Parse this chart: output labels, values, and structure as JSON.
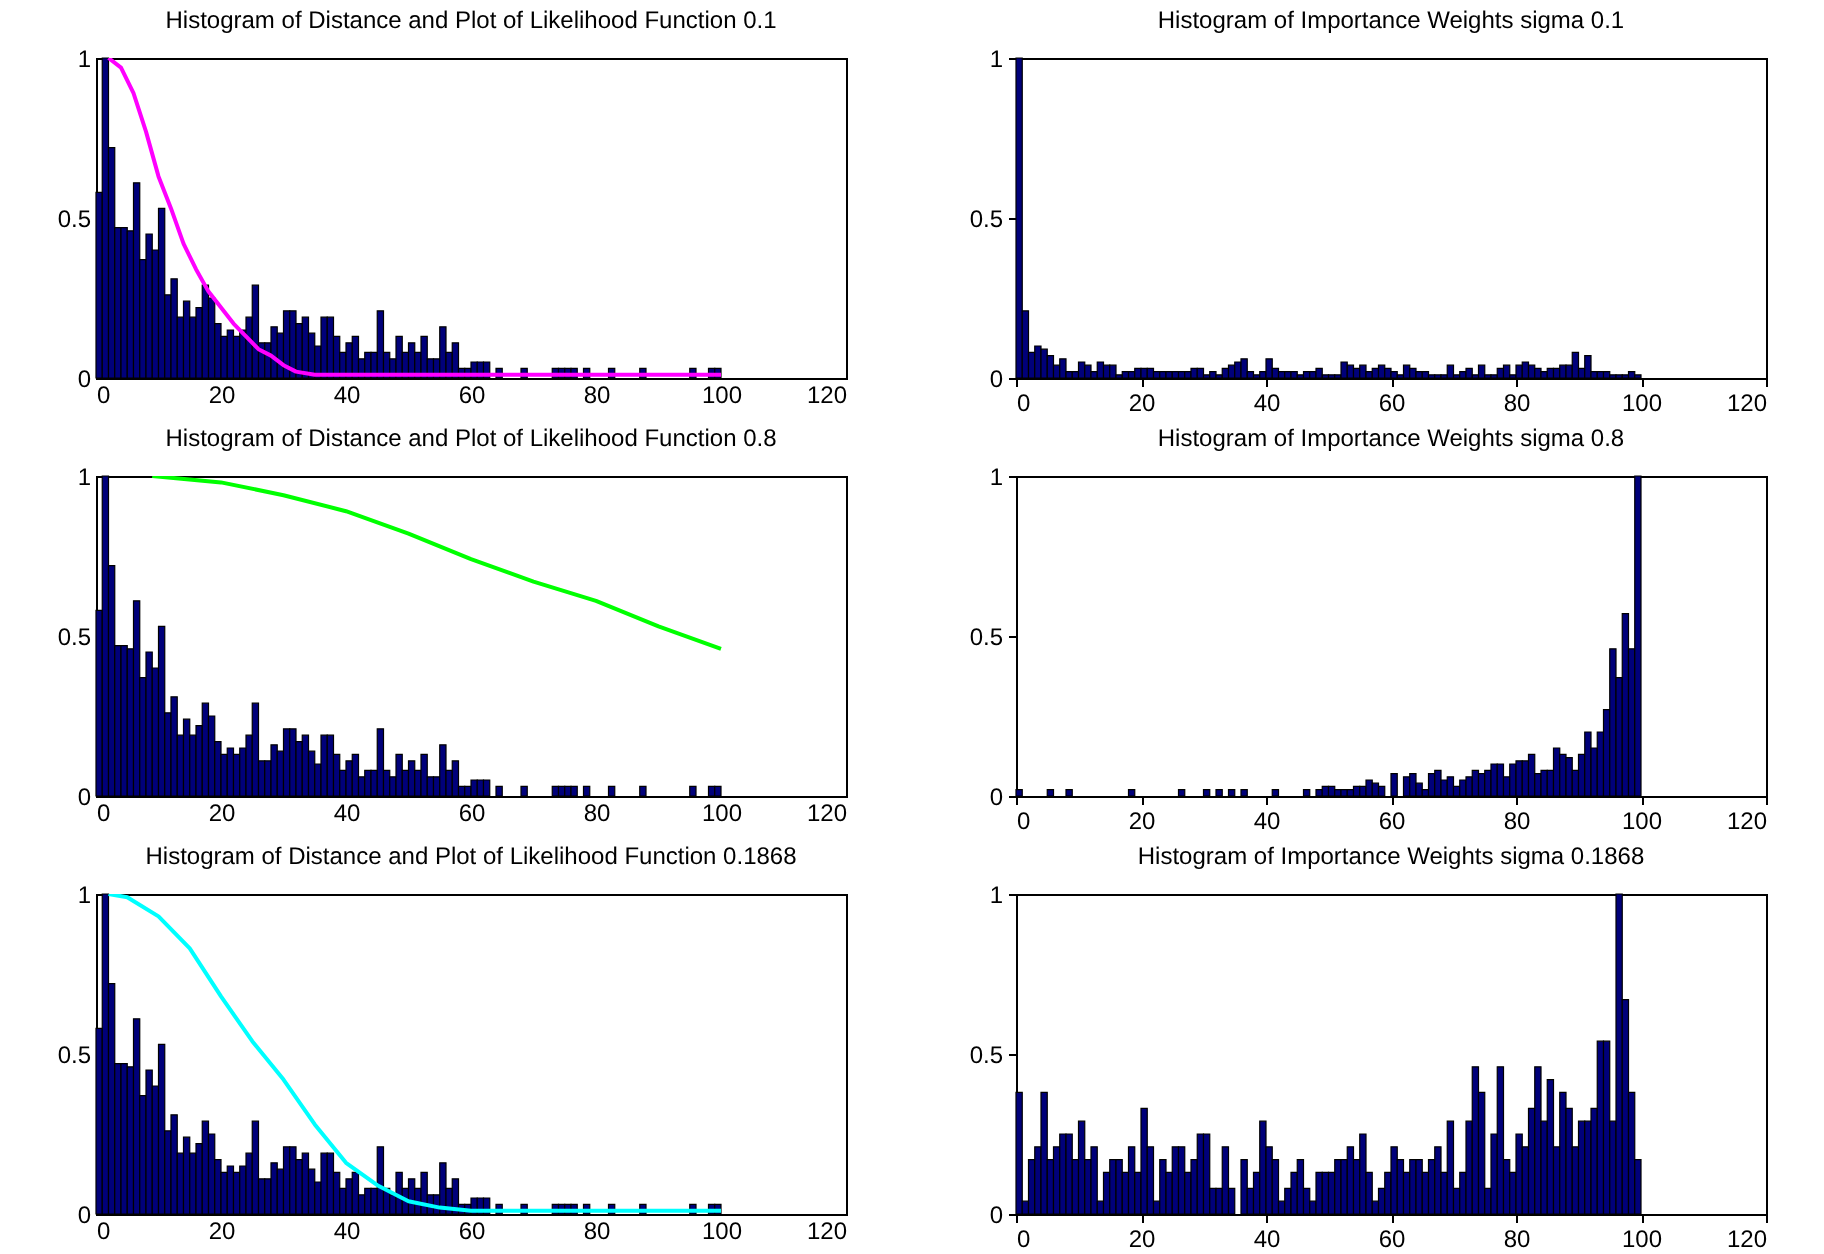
{
  "chart_data": [
    {
      "type": "histogram",
      "title": "Histogram of Distance and Plot of Likelihood Function 0.1",
      "bins": [
        0,
        1,
        2,
        3,
        4,
        5,
        6,
        7,
        8,
        9,
        10,
        11,
        12,
        13,
        14,
        15,
        16,
        17,
        18,
        19,
        20,
        21,
        22,
        23,
        24,
        25,
        26,
        27,
        28,
        29,
        30,
        31,
        32,
        33,
        34,
        35,
        36,
        37,
        38,
        39,
        40,
        41,
        42,
        43,
        44,
        45,
        46,
        47,
        48,
        49,
        50,
        51,
        52,
        53,
        54,
        55,
        56,
        57,
        58,
        59,
        60,
        61,
        62,
        63,
        64,
        65,
        66,
        67,
        68,
        69,
        70,
        71,
        72,
        73,
        74,
        75,
        76,
        77,
        78,
        79,
        80,
        81,
        82,
        83,
        84,
        85,
        86,
        87,
        88,
        89,
        90,
        91,
        92,
        93,
        94,
        95,
        96,
        97,
        98,
        99,
        100
      ],
      "xlim": [
        0,
        120
      ],
      "xticks": [
        0,
        20,
        40,
        60,
        80,
        100,
        120
      ],
      "ylim": [
        0,
        1
      ],
      "yticks": [
        0,
        0.5,
        1
      ],
      "series": [
        {
          "type": "histogram",
          "color": "#00007a",
          "values": [
            0.58,
            1.0,
            0.72,
            0.47,
            0.47,
            0.46,
            0.61,
            0.37,
            0.45,
            0.4,
            0.53,
            0.26,
            0.31,
            0.19,
            0.24,
            0.19,
            0.22,
            0.29,
            0.25,
            0.17,
            0.13,
            0.15,
            0.13,
            0.15,
            0.19,
            0.29,
            0.11,
            0.11,
            0.16,
            0.14,
            0.21,
            0.21,
            0.17,
            0.19,
            0.14,
            0.1,
            0.19,
            0.19,
            0.13,
            0.08,
            0.11,
            0.13,
            0.06,
            0.08,
            0.08,
            0.21,
            0.08,
            0.06,
            0.13,
            0.08,
            0.11,
            0.08,
            0.13,
            0.06,
            0.06,
            0.16,
            0.08,
            0.11,
            0.03,
            0.03,
            0.05,
            0.05,
            0.05,
            0,
            0.03,
            0,
            0,
            0,
            0.03,
            0,
            0,
            0,
            0,
            0.03,
            0.03,
            0.03,
            0.03,
            0,
            0.03,
            0,
            0,
            0,
            0.03,
            0,
            0,
            0,
            0,
            0.03,
            0,
            0,
            0,
            0,
            0,
            0,
            0,
            0.03,
            0,
            0,
            0.03,
            0.03
          ]
        },
        {
          "type": "line",
          "color": "#ff00ff",
          "x": [
            2,
            4,
            6,
            8,
            10,
            12,
            14,
            16,
            18,
            20,
            22,
            24,
            26,
            28,
            30,
            32,
            35,
            100
          ],
          "values": [
            1,
            0.97,
            0.89,
            0.77,
            0.63,
            0.53,
            0.42,
            0.34,
            0.27,
            0.22,
            0.17,
            0.13,
            0.09,
            0.07,
            0.04,
            0.02,
            0.01,
            0.01
          ]
        }
      ]
    },
    {
      "type": "histogram",
      "title": "Histogram of Importance Weights sigma 0.1",
      "bins": [
        0,
        1,
        2,
        3,
        4,
        5,
        6,
        7,
        8,
        9,
        10,
        11,
        12,
        13,
        14,
        15,
        16,
        17,
        18,
        19,
        20,
        21,
        22,
        23,
        24,
        25,
        26,
        27,
        28,
        29,
        30,
        31,
        32,
        33,
        34,
        35,
        36,
        37,
        38,
        39,
        40,
        41,
        42,
        43,
        44,
        45,
        46,
        47,
        48,
        49,
        50,
        51,
        52,
        53,
        54,
        55,
        56,
        57,
        58,
        59,
        60,
        61,
        62,
        63,
        64,
        65,
        66,
        67,
        68,
        69,
        70,
        71,
        72,
        73,
        74,
        75,
        76,
        77,
        78,
        79,
        80,
        81,
        82,
        83,
        84,
        85,
        86,
        87,
        88,
        89,
        90,
        91,
        92,
        93,
        94,
        95,
        96,
        97,
        98,
        99,
        100
      ],
      "xlim": [
        0,
        120
      ],
      "xticks": [
        0,
        20,
        40,
        60,
        80,
        100,
        120
      ],
      "ylim": [
        0,
        1
      ],
      "yticks": [
        0,
        0.5,
        1
      ],
      "series": [
        {
          "type": "histogram",
          "color": "#00007a",
          "values": [
            1.0,
            0.21,
            0.08,
            0.1,
            0.09,
            0.07,
            0.04,
            0.06,
            0.02,
            0.02,
            0.05,
            0.04,
            0.02,
            0.05,
            0.04,
            0.04,
            0.01,
            0.02,
            0.02,
            0.03,
            0.03,
            0.03,
            0.02,
            0.02,
            0.02,
            0.02,
            0.02,
            0.02,
            0.03,
            0.03,
            0.01,
            0.02,
            0.01,
            0.03,
            0.04,
            0.05,
            0.06,
            0.02,
            0.01,
            0.02,
            0.06,
            0.03,
            0.02,
            0.02,
            0.02,
            0.01,
            0.02,
            0.02,
            0.03,
            0.01,
            0.01,
            0.01,
            0.05,
            0.04,
            0.03,
            0.04,
            0.02,
            0.03,
            0.04,
            0.03,
            0.02,
            0.01,
            0.04,
            0.03,
            0.02,
            0.02,
            0.01,
            0.01,
            0.01,
            0.04,
            0.01,
            0.02,
            0.03,
            0.01,
            0.04,
            0.01,
            0.01,
            0.03,
            0.04,
            0.01,
            0.04,
            0.05,
            0.04,
            0.03,
            0.02,
            0.03,
            0.03,
            0.04,
            0.04,
            0.08,
            0.03,
            0.07,
            0.02,
            0.02,
            0.02,
            0.01,
            0.01,
            0.01,
            0.02,
            0.01
          ]
        }
      ]
    },
    {
      "type": "histogram",
      "title": "Histogram of Distance and Plot of Likelihood Function 0.8",
      "bins": [
        0,
        1,
        2,
        3,
        4,
        5,
        6,
        7,
        8,
        9,
        10,
        11,
        12,
        13,
        14,
        15,
        16,
        17,
        18,
        19,
        20,
        21,
        22,
        23,
        24,
        25,
        26,
        27,
        28,
        29,
        30,
        31,
        32,
        33,
        34,
        35,
        36,
        37,
        38,
        39,
        40,
        41,
        42,
        43,
        44,
        45,
        46,
        47,
        48,
        49,
        50,
        51,
        52,
        53,
        54,
        55,
        56,
        57,
        58,
        59,
        60,
        61,
        62,
        63,
        64,
        65,
        66,
        67,
        68,
        69,
        70,
        71,
        72,
        73,
        74,
        75,
        76,
        77,
        78,
        79,
        80,
        81,
        82,
        83,
        84,
        85,
        86,
        87,
        88,
        89,
        90,
        91,
        92,
        93,
        94,
        95,
        96,
        97,
        98,
        99,
        100
      ],
      "xlim": [
        0,
        120
      ],
      "xticks": [
        0,
        20,
        40,
        60,
        80,
        100,
        120
      ],
      "ylim": [
        0,
        1
      ],
      "yticks": [
        0,
        0.5,
        1
      ],
      "series": [
        {
          "type": "histogram",
          "color": "#00007a",
          "values": [
            0.58,
            1.0,
            0.72,
            0.47,
            0.47,
            0.46,
            0.61,
            0.37,
            0.45,
            0.4,
            0.53,
            0.26,
            0.31,
            0.19,
            0.24,
            0.19,
            0.22,
            0.29,
            0.25,
            0.17,
            0.13,
            0.15,
            0.13,
            0.15,
            0.19,
            0.29,
            0.11,
            0.11,
            0.16,
            0.14,
            0.21,
            0.21,
            0.17,
            0.19,
            0.14,
            0.1,
            0.19,
            0.19,
            0.13,
            0.08,
            0.11,
            0.13,
            0.06,
            0.08,
            0.08,
            0.21,
            0.08,
            0.06,
            0.13,
            0.08,
            0.11,
            0.08,
            0.13,
            0.06,
            0.06,
            0.16,
            0.08,
            0.11,
            0.03,
            0.03,
            0.05,
            0.05,
            0.05,
            0,
            0.03,
            0,
            0,
            0,
            0.03,
            0,
            0,
            0,
            0,
            0.03,
            0.03,
            0.03,
            0.03,
            0,
            0.03,
            0,
            0,
            0,
            0.03,
            0,
            0,
            0,
            0,
            0.03,
            0,
            0,
            0,
            0,
            0,
            0,
            0,
            0.03,
            0,
            0,
            0.03,
            0.03
          ]
        },
        {
          "type": "line",
          "color": "#00ff00",
          "x": [
            9,
            20,
            30,
            40,
            50,
            60,
            70,
            80,
            90,
            100
          ],
          "values": [
            1,
            0.98,
            0.94,
            0.89,
            0.82,
            0.74,
            0.67,
            0.61,
            0.53,
            0.46
          ]
        }
      ]
    },
    {
      "type": "histogram",
      "title": "Histogram of Importance Weights sigma 0.8",
      "bins": [
        0,
        1,
        2,
        3,
        4,
        5,
        6,
        7,
        8,
        9,
        10,
        11,
        12,
        13,
        14,
        15,
        16,
        17,
        18,
        19,
        20,
        21,
        22,
        23,
        24,
        25,
        26,
        27,
        28,
        29,
        30,
        31,
        32,
        33,
        34,
        35,
        36,
        37,
        38,
        39,
        40,
        41,
        42,
        43,
        44,
        45,
        46,
        47,
        48,
        49,
        50,
        51,
        52,
        53,
        54,
        55,
        56,
        57,
        58,
        59,
        60,
        61,
        62,
        63,
        64,
        65,
        66,
        67,
        68,
        69,
        70,
        71,
        72,
        73,
        74,
        75,
        76,
        77,
        78,
        79,
        80,
        81,
        82,
        83,
        84,
        85,
        86,
        87,
        88,
        89,
        90,
        91,
        92,
        93,
        94,
        95,
        96,
        97,
        98,
        99,
        100
      ],
      "xlim": [
        0,
        120
      ],
      "xticks": [
        0,
        20,
        40,
        60,
        80,
        100,
        120
      ],
      "ylim": [
        0,
        1
      ],
      "yticks": [
        0,
        0.5,
        1
      ],
      "series": [
        {
          "type": "histogram",
          "color": "#00007a",
          "values": [
            0.02,
            0,
            0,
            0,
            0,
            0.02,
            0,
            0,
            0.02,
            0,
            0,
            0,
            0,
            0,
            0,
            0,
            0,
            0,
            0.02,
            0,
            0,
            0,
            0,
            0,
            0,
            0,
            0.02,
            0,
            0,
            0,
            0.02,
            0,
            0.02,
            0,
            0.02,
            0,
            0.02,
            0,
            0,
            0,
            0,
            0.02,
            0,
            0,
            0,
            0,
            0.02,
            0,
            0.02,
            0.03,
            0.03,
            0.02,
            0.02,
            0.02,
            0.03,
            0.03,
            0.05,
            0.04,
            0.03,
            0,
            0.07,
            0,
            0.06,
            0.07,
            0.04,
            0.02,
            0.07,
            0.08,
            0.05,
            0.06,
            0.03,
            0.05,
            0.06,
            0.08,
            0.07,
            0.08,
            0.1,
            0.1,
            0.06,
            0.1,
            0.11,
            0.11,
            0.13,
            0.07,
            0.08,
            0.08,
            0.15,
            0.13,
            0.12,
            0.08,
            0.13,
            0.2,
            0.15,
            0.2,
            0.27,
            0.46,
            0.37,
            0.57,
            0.46,
            1.0
          ]
        }
      ]
    },
    {
      "type": "histogram",
      "title": "Histogram of Distance and Plot of Likelihood Function 0.1868",
      "bins": [
        0,
        1,
        2,
        3,
        4,
        5,
        6,
        7,
        8,
        9,
        10,
        11,
        12,
        13,
        14,
        15,
        16,
        17,
        18,
        19,
        20,
        21,
        22,
        23,
        24,
        25,
        26,
        27,
        28,
        29,
        30,
        31,
        32,
        33,
        34,
        35,
        36,
        37,
        38,
        39,
        40,
        41,
        42,
        43,
        44,
        45,
        46,
        47,
        48,
        49,
        50,
        51,
        52,
        53,
        54,
        55,
        56,
        57,
        58,
        59,
        60,
        61,
        62,
        63,
        64,
        65,
        66,
        67,
        68,
        69,
        70,
        71,
        72,
        73,
        74,
        75,
        76,
        77,
        78,
        79,
        80,
        81,
        82,
        83,
        84,
        85,
        86,
        87,
        88,
        89,
        90,
        91,
        92,
        93,
        94,
        95,
        96,
        97,
        98,
        99,
        100
      ],
      "xlim": [
        0,
        120
      ],
      "xticks": [
        0,
        20,
        40,
        60,
        80,
        100,
        120
      ],
      "ylim": [
        0,
        1
      ],
      "yticks": [
        0,
        0.5,
        1
      ],
      "series": [
        {
          "type": "histogram",
          "color": "#00007a",
          "values": [
            0.58,
            1.0,
            0.72,
            0.47,
            0.47,
            0.46,
            0.61,
            0.37,
            0.45,
            0.4,
            0.53,
            0.26,
            0.31,
            0.19,
            0.24,
            0.19,
            0.22,
            0.29,
            0.25,
            0.17,
            0.13,
            0.15,
            0.13,
            0.15,
            0.19,
            0.29,
            0.11,
            0.11,
            0.16,
            0.14,
            0.21,
            0.21,
            0.17,
            0.19,
            0.14,
            0.1,
            0.19,
            0.19,
            0.13,
            0.08,
            0.11,
            0.13,
            0.06,
            0.08,
            0.08,
            0.21,
            0.08,
            0.06,
            0.13,
            0.08,
            0.11,
            0.08,
            0.13,
            0.06,
            0.06,
            0.16,
            0.08,
            0.11,
            0.03,
            0.03,
            0.05,
            0.05,
            0.05,
            0,
            0.03,
            0,
            0,
            0,
            0.03,
            0,
            0,
            0,
            0,
            0.03,
            0.03,
            0.03,
            0.03,
            0,
            0.03,
            0,
            0,
            0,
            0.03,
            0,
            0,
            0,
            0,
            0.03,
            0,
            0,
            0,
            0,
            0,
            0,
            0,
            0.03,
            0,
            0,
            0.03,
            0.03
          ]
        },
        {
          "type": "line",
          "color": "#00ffff",
          "x": [
            2,
            5,
            10,
            15,
            20,
            25,
            30,
            35,
            40,
            45,
            50,
            55,
            60,
            100
          ],
          "values": [
            1,
            0.99,
            0.93,
            0.83,
            0.68,
            0.54,
            0.42,
            0.28,
            0.16,
            0.09,
            0.04,
            0.02,
            0.01,
            0.01
          ]
        }
      ]
    },
    {
      "type": "histogram",
      "title": "Histogram of Importance Weights sigma 0.1868",
      "bins": [
        0,
        1,
        2,
        3,
        4,
        5,
        6,
        7,
        8,
        9,
        10,
        11,
        12,
        13,
        14,
        15,
        16,
        17,
        18,
        19,
        20,
        21,
        22,
        23,
        24,
        25,
        26,
        27,
        28,
        29,
        30,
        31,
        32,
        33,
        34,
        35,
        36,
        37,
        38,
        39,
        40,
        41,
        42,
        43,
        44,
        45,
        46,
        47,
        48,
        49,
        50,
        51,
        52,
        53,
        54,
        55,
        56,
        57,
        58,
        59,
        60,
        61,
        62,
        63,
        64,
        65,
        66,
        67,
        68,
        69,
        70,
        71,
        72,
        73,
        74,
        75,
        76,
        77,
        78,
        79,
        80,
        81,
        82,
        83,
        84,
        85,
        86,
        87,
        88,
        89,
        90,
        91,
        92,
        93,
        94,
        95,
        96,
        97,
        98,
        99,
        100
      ],
      "xlim": [
        0,
        120
      ],
      "xticks": [
        0,
        20,
        40,
        60,
        80,
        100,
        120
      ],
      "ylim": [
        0,
        1
      ],
      "yticks": [
        0,
        0.5,
        1
      ],
      "series": [
        {
          "type": "histogram",
          "color": "#00007a",
          "values": [
            0.38,
            0.04,
            0.17,
            0.21,
            0.38,
            0.17,
            0.21,
            0.25,
            0.25,
            0.17,
            0.29,
            0.17,
            0.21,
            0.04,
            0.13,
            0.17,
            0.17,
            0.13,
            0.21,
            0.13,
            0.33,
            0.21,
            0.04,
            0.17,
            0.13,
            0.21,
            0.21,
            0.13,
            0.17,
            0.25,
            0.25,
            0.08,
            0.08,
            0.21,
            0.08,
            0,
            0.17,
            0.08,
            0.13,
            0.29,
            0.21,
            0.17,
            0.04,
            0.08,
            0.13,
            0.17,
            0.08,
            0.04,
            0.13,
            0.13,
            0.13,
            0.17,
            0.17,
            0.21,
            0.17,
            0.25,
            0.13,
            0.04,
            0.08,
            0.13,
            0.21,
            0.17,
            0.13,
            0.17,
            0.17,
            0.13,
            0.17,
            0.21,
            0.13,
            0.29,
            0.08,
            0.13,
            0.29,
            0.46,
            0.38,
            0.08,
            0.25,
            0.46,
            0.17,
            0.13,
            0.25,
            0.21,
            0.33,
            0.46,
            0.29,
            0.42,
            0.21,
            0.38,
            0.33,
            0.21,
            0.29,
            0.29,
            0.33,
            0.54,
            0.54,
            0.29,
            1.0,
            0.67,
            0.38,
            0.17
          ]
        }
      ]
    }
  ]
}
